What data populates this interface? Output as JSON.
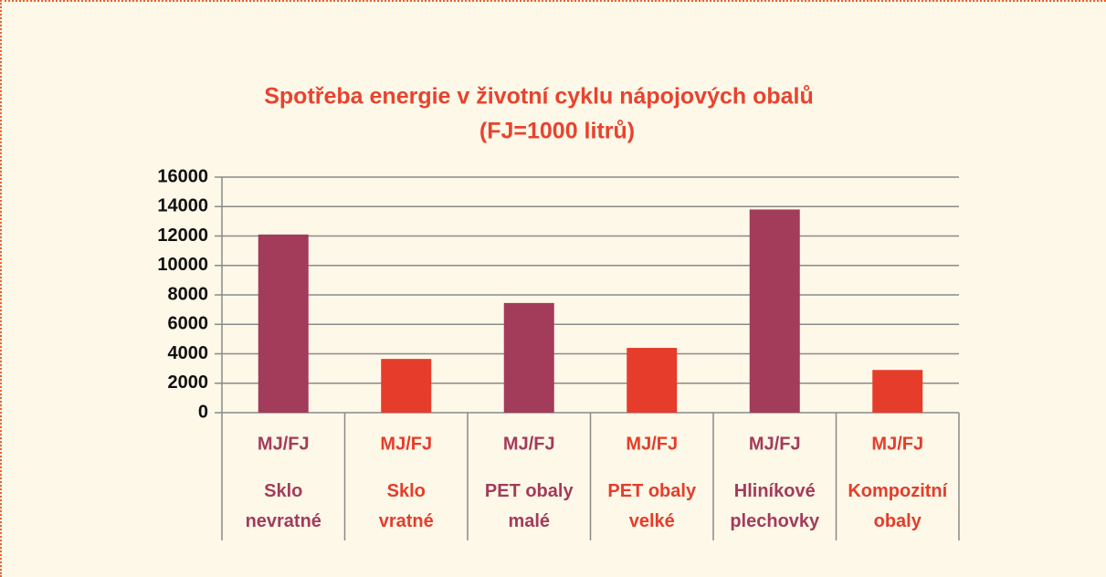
{
  "chart_data": {
    "type": "bar",
    "title": [
      "Spotřeba energie v životní cyklu nápojových obalů",
      "(FJ=1000 litrů)"
    ],
    "categories": [
      "Sklo nevratné",
      "Sklo vratné",
      "PET obaly malé",
      "PET obaly velké",
      "Hliníkové plechovky",
      "Kompozitní obaly"
    ],
    "sublabels": [
      "MJ/FJ",
      "MJ/FJ",
      "MJ/FJ",
      "MJ/FJ",
      "MJ/FJ",
      "MJ/FJ"
    ],
    "values": [
      12100,
      3650,
      7450,
      4400,
      13800,
      2900
    ],
    "colors": [
      "#a33b5b",
      "#e63c2b",
      "#a33b5b",
      "#e63c2b",
      "#a33b5b",
      "#e63c2b"
    ],
    "ylim": [
      0,
      16000
    ],
    "yticks": [
      0,
      2000,
      4000,
      6000,
      8000,
      10000,
      12000,
      14000,
      16000
    ],
    "grid": true
  }
}
